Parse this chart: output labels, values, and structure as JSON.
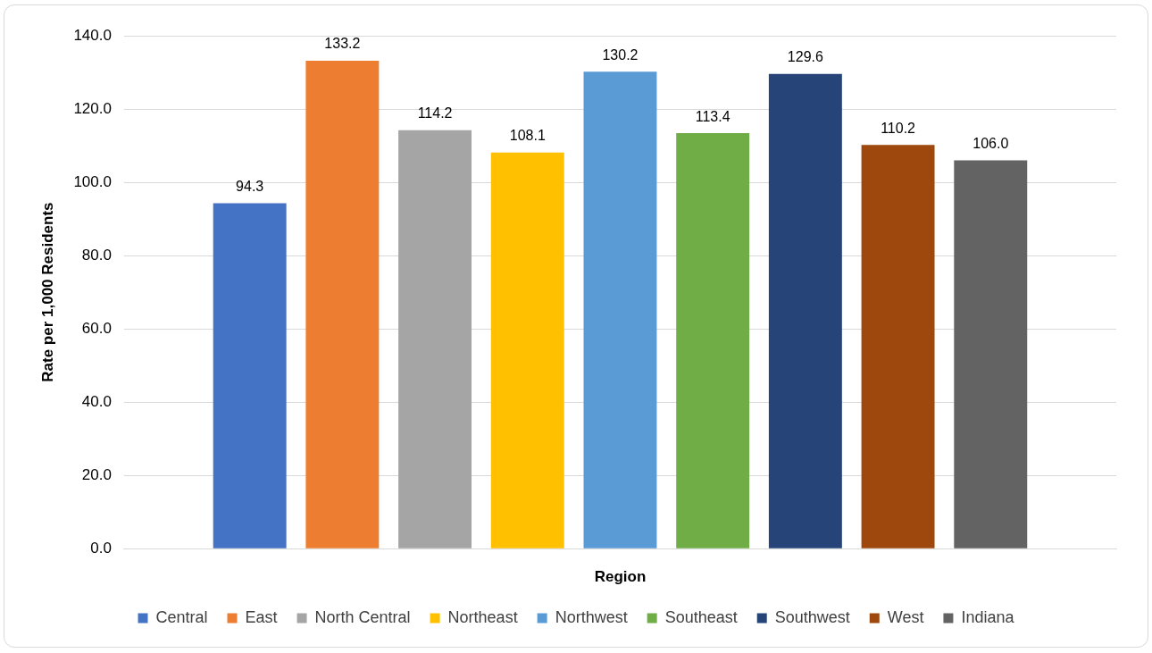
{
  "chart_data": {
    "type": "bar",
    "xlabel": "Region",
    "ylabel": "Rate per 1,000 Residents",
    "categories": [
      null
    ],
    "series": [
      {
        "name": "Central",
        "color": "#4472c4",
        "values": [
          94.3
        ],
        "value_labels": [
          "94.3"
        ]
      },
      {
        "name": "East",
        "color": "#ed7d31",
        "values": [
          133.2
        ],
        "value_labels": [
          "133.2"
        ]
      },
      {
        "name": "North Central",
        "color": "#a5a5a5",
        "values": [
          114.2
        ],
        "value_labels": [
          "114.2"
        ]
      },
      {
        "name": "Northeast",
        "color": "#ffc000",
        "values": [
          108.1
        ],
        "value_labels": [
          "108.1"
        ]
      },
      {
        "name": "Northwest",
        "color": "#5b9bd5",
        "values": [
          130.2
        ],
        "value_labels": [
          "130.2"
        ]
      },
      {
        "name": "Southeast",
        "color": "#70ad47",
        "values": [
          113.4
        ],
        "value_labels": [
          "113.4"
        ]
      },
      {
        "name": "Southwest",
        "color": "#264478",
        "values": [
          129.6
        ],
        "value_labels": [
          "129.6"
        ]
      },
      {
        "name": "West",
        "color": "#9e480e",
        "values": [
          110.2
        ],
        "value_labels": [
          "110.2"
        ]
      },
      {
        "name": "Indiana",
        "color": "#636363",
        "values": [
          106.0
        ],
        "value_labels": [
          "106.0"
        ]
      }
    ],
    "ylim": [
      0,
      140
    ],
    "yticks": [
      {
        "value": 0,
        "label": "0.0"
      },
      {
        "value": 20,
        "label": "20.0"
      },
      {
        "value": 40,
        "label": "40.0"
      },
      {
        "value": 60,
        "label": "60.0"
      },
      {
        "value": 80,
        "label": "80.0"
      },
      {
        "value": 100,
        "label": "100.0"
      },
      {
        "value": 120,
        "label": "120.0"
      },
      {
        "value": 140,
        "label": "140.0"
      }
    ],
    "grid": "y",
    "legend": "bottom"
  }
}
